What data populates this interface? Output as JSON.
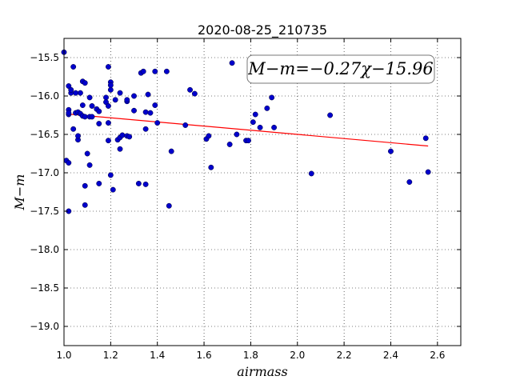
{
  "chart_data": {
    "type": "scatter",
    "title": "2020-08-25_210735",
    "xlabel": "airmass",
    "ylabel": "M−m",
    "annotation": "M−m=−0.27χ−15.96",
    "xlim": [
      1.0,
      2.7
    ],
    "ylim": [
      -19.25,
      -15.25
    ],
    "x_ticks": [
      1.0,
      1.2,
      1.4,
      1.6,
      1.8,
      2.0,
      2.2,
      2.4,
      2.6
    ],
    "x_tick_labels": [
      "1.0",
      "1.2",
      "1.4",
      "1.6",
      "1.8",
      "2.0",
      "2.2",
      "2.4",
      "2.6"
    ],
    "y_ticks": [
      -15.5,
      -16.0,
      -16.5,
      -17.0,
      -17.5,
      -18.0,
      -18.5,
      -19.0
    ],
    "y_tick_labels": [
      "−15.5",
      "−16.0",
      "−16.5",
      "−17.0",
      "−17.5",
      "−18.0",
      "−18.5",
      "−19.0"
    ],
    "grid": true,
    "point_color": "#0000cc",
    "fit_color": "#ff0000",
    "fit": {
      "slope": -0.27,
      "intercept": -15.96,
      "x_range": [
        1.03,
        2.56
      ]
    },
    "points": [
      [
        1.0,
        -15.43
      ],
      [
        1.01,
        -16.84
      ],
      [
        1.02,
        -15.87
      ],
      [
        1.02,
        -16.18
      ],
      [
        1.02,
        -16.24
      ],
      [
        1.02,
        -16.22
      ],
      [
        1.02,
        -16.87
      ],
      [
        1.02,
        -17.5
      ],
      [
        1.03,
        -15.96
      ],
      [
        1.03,
        -15.92
      ],
      [
        1.04,
        -15.62
      ],
      [
        1.04,
        -16.43
      ],
      [
        1.05,
        -16.22
      ],
      [
        1.05,
        -15.96
      ],
      [
        1.06,
        -16.21
      ],
      [
        1.06,
        -16.57
      ],
      [
        1.06,
        -16.52
      ],
      [
        1.07,
        -16.23
      ],
      [
        1.07,
        -15.96
      ],
      [
        1.08,
        -16.26
      ],
      [
        1.08,
        -15.81
      ],
      [
        1.08,
        -16.12
      ],
      [
        1.09,
        -15.83
      ],
      [
        1.09,
        -16.27
      ],
      [
        1.09,
        -17.17
      ],
      [
        1.09,
        -17.42
      ],
      [
        1.1,
        -16.75
      ],
      [
        1.11,
        -16.02
      ],
      [
        1.11,
        -16.27
      ],
      [
        1.11,
        -16.9
      ],
      [
        1.12,
        -16.13
      ],
      [
        1.12,
        -16.27
      ],
      [
        1.14,
        -16.17
      ],
      [
        1.15,
        -16.2
      ],
      [
        1.15,
        -16.36
      ],
      [
        1.15,
        -17.14
      ],
      [
        1.18,
        -16.02
      ],
      [
        1.18,
        -16.08
      ],
      [
        1.19,
        -15.62
      ],
      [
        1.19,
        -16.13
      ],
      [
        1.19,
        -16.35
      ],
      [
        1.19,
        -16.58
      ],
      [
        1.2,
        -15.82
      ],
      [
        1.2,
        -15.86
      ],
      [
        1.2,
        -15.92
      ],
      [
        1.2,
        -17.03
      ],
      [
        1.21,
        -17.22
      ],
      [
        1.22,
        -16.05
      ],
      [
        1.23,
        -16.57
      ],
      [
        1.24,
        -16.54
      ],
      [
        1.24,
        -15.96
      ],
      [
        1.24,
        -16.69
      ],
      [
        1.25,
        -16.51
      ],
      [
        1.27,
        -16.52
      ],
      [
        1.27,
        -16.07
      ],
      [
        1.27,
        -16.05
      ],
      [
        1.28,
        -16.53
      ],
      [
        1.3,
        -16.0
      ],
      [
        1.3,
        -16.19
      ],
      [
        1.32,
        -17.14
      ],
      [
        1.33,
        -15.7
      ],
      [
        1.34,
        -15.68
      ],
      [
        1.35,
        -17.15
      ],
      [
        1.35,
        -16.21
      ],
      [
        1.35,
        -16.43
      ],
      [
        1.36,
        -15.98
      ],
      [
        1.37,
        -16.22
      ],
      [
        1.39,
        -15.68
      ],
      [
        1.39,
        -16.12
      ],
      [
        1.4,
        -16.35
      ],
      [
        1.44,
        -15.68
      ],
      [
        1.45,
        -17.43
      ],
      [
        1.46,
        -16.72
      ],
      [
        1.52,
        -16.38
      ],
      [
        1.54,
        -15.92
      ],
      [
        1.56,
        -15.97
      ],
      [
        1.61,
        -16.56
      ],
      [
        1.62,
        -16.52
      ],
      [
        1.63,
        -16.93
      ],
      [
        1.71,
        -16.63
      ],
      [
        1.72,
        -15.57
      ],
      [
        1.74,
        -16.5
      ],
      [
        1.78,
        -16.58
      ],
      [
        1.79,
        -16.58
      ],
      [
        1.81,
        -16.34
      ],
      [
        1.82,
        -16.24
      ],
      [
        1.84,
        -16.41
      ],
      [
        1.87,
        -16.16
      ],
      [
        1.89,
        -16.02
      ],
      [
        1.9,
        -16.41
      ],
      [
        2.06,
        -17.01
      ],
      [
        2.14,
        -16.25
      ],
      [
        2.4,
        -16.72
      ],
      [
        2.48,
        -17.12
      ],
      [
        2.55,
        -16.55
      ],
      [
        2.56,
        -16.99
      ]
    ]
  }
}
